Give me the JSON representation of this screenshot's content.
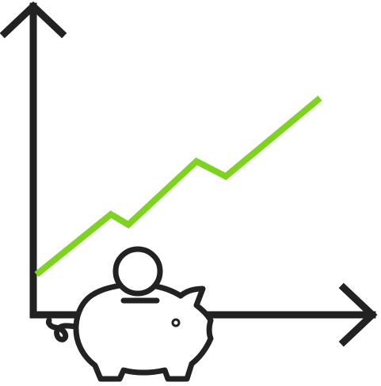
{
  "colors": {
    "axis": "#222222",
    "trend": "#7ED321",
    "background": "#ffffff",
    "piggy_fill": "#ffffff"
  },
  "icons": {
    "axes": "chart-axes-icon",
    "trend": "growth-line-icon",
    "piggy_bank": "piggy-bank-icon",
    "coin": "coin-icon"
  },
  "trend": {
    "direction": "up"
  }
}
